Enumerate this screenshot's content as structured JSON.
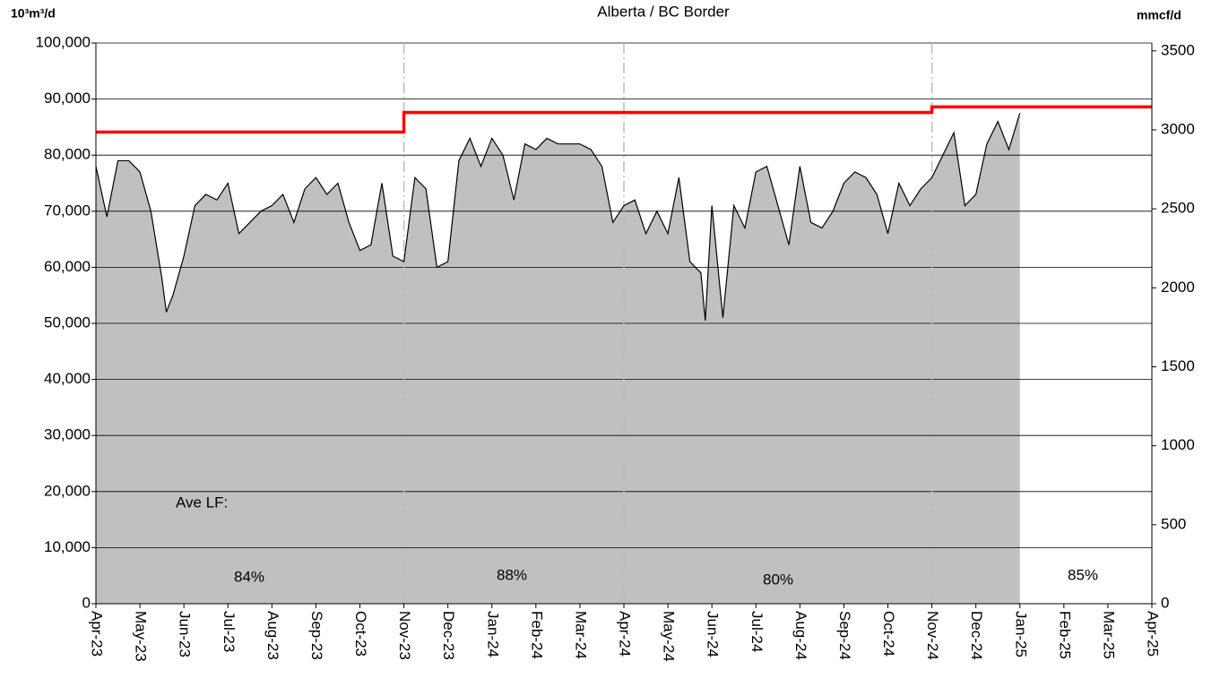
{
  "chart_data": {
    "type": "area",
    "title": "Alberta / BC Border",
    "y_label": "10³m³/d",
    "y2_label": "mmcf/d",
    "xlim": [
      0,
      24
    ],
    "xticks": [
      {
        "value": 0,
        "label": "Apr-23"
      },
      {
        "value": 1,
        "label": "May-23"
      },
      {
        "value": 2,
        "label": "Jun-23"
      },
      {
        "value": 3,
        "label": "Jul-23"
      },
      {
        "value": 4,
        "label": "Aug-23"
      },
      {
        "value": 5,
        "label": "Sep-23"
      },
      {
        "value": 6,
        "label": "Oct-23"
      },
      {
        "value": 7,
        "label": "Nov-23"
      },
      {
        "value": 8,
        "label": "Dec-23"
      },
      {
        "value": 9,
        "label": "Jan-24"
      },
      {
        "value": 10,
        "label": "Feb-24"
      },
      {
        "value": 11,
        "label": "Mar-24"
      },
      {
        "value": 12,
        "label": "Apr-24"
      },
      {
        "value": 13,
        "label": "May-24"
      },
      {
        "value": 14,
        "label": "Jun-24"
      },
      {
        "value": 15,
        "label": "Jul-24"
      },
      {
        "value": 16,
        "label": "Aug-24"
      },
      {
        "value": 17,
        "label": "Sep-24"
      },
      {
        "value": 18,
        "label": "Oct-24"
      },
      {
        "value": 19,
        "label": "Nov-24"
      },
      {
        "value": 20,
        "label": "Dec-24"
      },
      {
        "value": 21,
        "label": "Jan-25"
      },
      {
        "value": 22,
        "label": "Feb-25"
      },
      {
        "value": 23,
        "label": "Mar-25"
      },
      {
        "value": 24,
        "label": "Apr-25"
      }
    ],
    "ylim": [
      0,
      100000
    ],
    "yticks": [
      0,
      {
        "value": 10000,
        "label": "10,000"
      },
      {
        "value": 20000,
        "label": "20,000"
      },
      {
        "value": 30000,
        "label": "30,000"
      },
      {
        "value": 40000,
        "label": "40,000"
      },
      {
        "value": 50000,
        "label": "50,000"
      },
      {
        "value": 60000,
        "label": "60,000"
      },
      {
        "value": 70000,
        "label": "70,000"
      },
      {
        "value": 80000,
        "label": "80,000"
      },
      {
        "value": 90000,
        "label": "90,000"
      },
      {
        "value": 100000,
        "label": "100,000"
      }
    ],
    "y2lim": [
      0,
      3550
    ],
    "y2ticks": [
      0,
      500,
      1000,
      1500,
      2000,
      2500,
      3000,
      3500
    ],
    "dashed_xgrid": [
      7,
      12,
      19
    ],
    "series": [
      {
        "kind": "area",
        "color": "#c0c0c0",
        "line_color": "#000000",
        "x": [
          0,
          0.25,
          0.5,
          0.75,
          1,
          1.25,
          1.5,
          1.6,
          1.75,
          2,
          2.25,
          2.5,
          2.75,
          3,
          3.25,
          3.5,
          3.75,
          4,
          4.25,
          4.5,
          4.75,
          5,
          5.25,
          5.5,
          5.75,
          6,
          6.25,
          6.5,
          6.75,
          7,
          7.25,
          7.5,
          7.75,
          8,
          8.25,
          8.5,
          8.75,
          9,
          9.25,
          9.5,
          9.75,
          10,
          10.25,
          10.5,
          10.75,
          11,
          11.25,
          11.5,
          11.75,
          12,
          12.25,
          12.5,
          12.75,
          13,
          13.25,
          13.5,
          13.75,
          13.85,
          14,
          14.25,
          14.5,
          14.75,
          15,
          15.25,
          15.5,
          15.75,
          16,
          16.25,
          16.5,
          16.75,
          17,
          17.25,
          17.5,
          17.75,
          18,
          18.25,
          18.5,
          18.75,
          19,
          19.25,
          19.5,
          19.75,
          20,
          20.25,
          20.5,
          20.75,
          21
        ],
        "values": [
          78000,
          69000,
          79000,
          79000,
          77000,
          70000,
          58000,
          52000,
          55000,
          62000,
          71000,
          73000,
          72000,
          75000,
          66000,
          68000,
          70000,
          71000,
          73000,
          68000,
          74000,
          76000,
          73000,
          75000,
          68000,
          63000,
          64000,
          75000,
          62000,
          61000,
          76000,
          74000,
          60000,
          61000,
          79000,
          83000,
          78000,
          83000,
          80000,
          72000,
          82000,
          81000,
          83000,
          82000,
          82000,
          82000,
          81000,
          78000,
          68000,
          71000,
          72000,
          66000,
          70000,
          66000,
          76000,
          61000,
          59000,
          50500,
          71000,
          51000,
          71000,
          67000,
          77000,
          78000,
          71000,
          64000,
          78000,
          68000,
          67000,
          70000,
          75000,
          77000,
          76000,
          73000,
          66000,
          75000,
          71000,
          74000,
          76000,
          80000,
          84000,
          71000,
          73000,
          82000,
          86000,
          81000,
          87500
        ]
      },
      {
        "kind": "line",
        "color": "#ff0000",
        "x": [
          0,
          7,
          7,
          19,
          19,
          24
        ],
        "values": [
          84100,
          84100,
          87600,
          87600,
          88600,
          88600
        ]
      }
    ],
    "annotations": [
      {
        "text": "Ave LF:"
      },
      {
        "text": "84%"
      },
      {
        "text": "88%"
      },
      {
        "text": "80%"
      },
      {
        "text": "85%"
      }
    ]
  }
}
